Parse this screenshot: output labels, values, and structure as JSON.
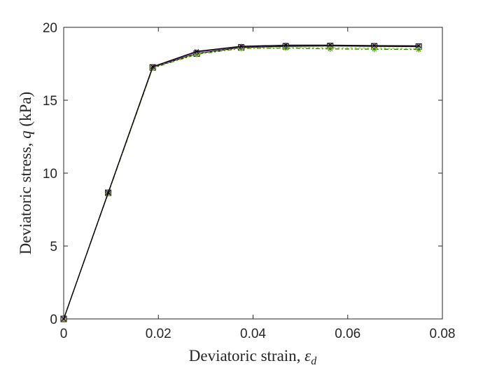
{
  "chart_data": {
    "type": "line",
    "title": "",
    "xlabel": "Deviatoric strain, ",
    "xlabel_symbol": "ε",
    "xlabel_subscript": "d",
    "ylabel": "Deviatoric stress, ",
    "ylabel_symbol": "q",
    "ylabel_suffix": " (kPa)",
    "xlim": [
      0,
      0.08
    ],
    "ylim": [
      0,
      20
    ],
    "xticks": [
      0,
      0.02,
      0.04,
      0.06,
      0.08
    ],
    "xtick_labels": [
      "0",
      "0.02",
      "0.04",
      "0.06",
      "0.08"
    ],
    "yticks": [
      0,
      5,
      10,
      15,
      20
    ],
    "ytick_labels": [
      "0",
      "5",
      "10",
      "15",
      "20"
    ],
    "grid": false,
    "series": [
      {
        "color": "#000000",
        "dash": "",
        "marker": "square",
        "x": [
          0,
          0.0094,
          0.0188,
          0.0281,
          0.0375,
          0.0469,
          0.0563,
          0.0656,
          0.075
        ],
        "y": [
          0,
          8.65,
          17.25,
          18.2,
          18.62,
          18.7,
          18.72,
          18.7,
          18.68
        ]
      },
      {
        "color": "#2b7a12",
        "dash": "6 3 2 3",
        "marker": "star",
        "x": [
          0,
          0.0094,
          0.0188,
          0.0281,
          0.0375,
          0.0469,
          0.0563,
          0.0656,
          0.075
        ],
        "y": [
          0,
          8.6,
          17.2,
          18.15,
          18.55,
          18.58,
          18.52,
          18.5,
          18.48
        ]
      },
      {
        "color": "#9acd32",
        "dash": "3 3",
        "marker": "circle",
        "x": [
          0,
          0.0094,
          0.0188,
          0.0281,
          0.0375,
          0.0469,
          0.0563,
          0.0656,
          0.075
        ],
        "y": [
          0,
          8.62,
          17.22,
          18.18,
          18.58,
          18.62,
          18.6,
          18.58,
          18.55
        ]
      },
      {
        "color": "#7b2f8f",
        "dash": "",
        "marker": "plus",
        "x": [
          0,
          0.0094,
          0.0188,
          0.0281,
          0.0375,
          0.0469,
          0.0563,
          0.0656,
          0.075
        ],
        "y": [
          0,
          8.65,
          17.27,
          18.3,
          18.68,
          18.76,
          18.76,
          18.74,
          18.72
        ]
      },
      {
        "color": "#000000",
        "dash": "",
        "marker": "x",
        "x": [
          0,
          0.0094,
          0.0188,
          0.0281,
          0.0375,
          0.0469,
          0.0563,
          0.0656,
          0.075
        ],
        "y": [
          0,
          8.66,
          17.3,
          18.35,
          18.7,
          18.78,
          18.78,
          18.75,
          18.73
        ]
      }
    ]
  }
}
